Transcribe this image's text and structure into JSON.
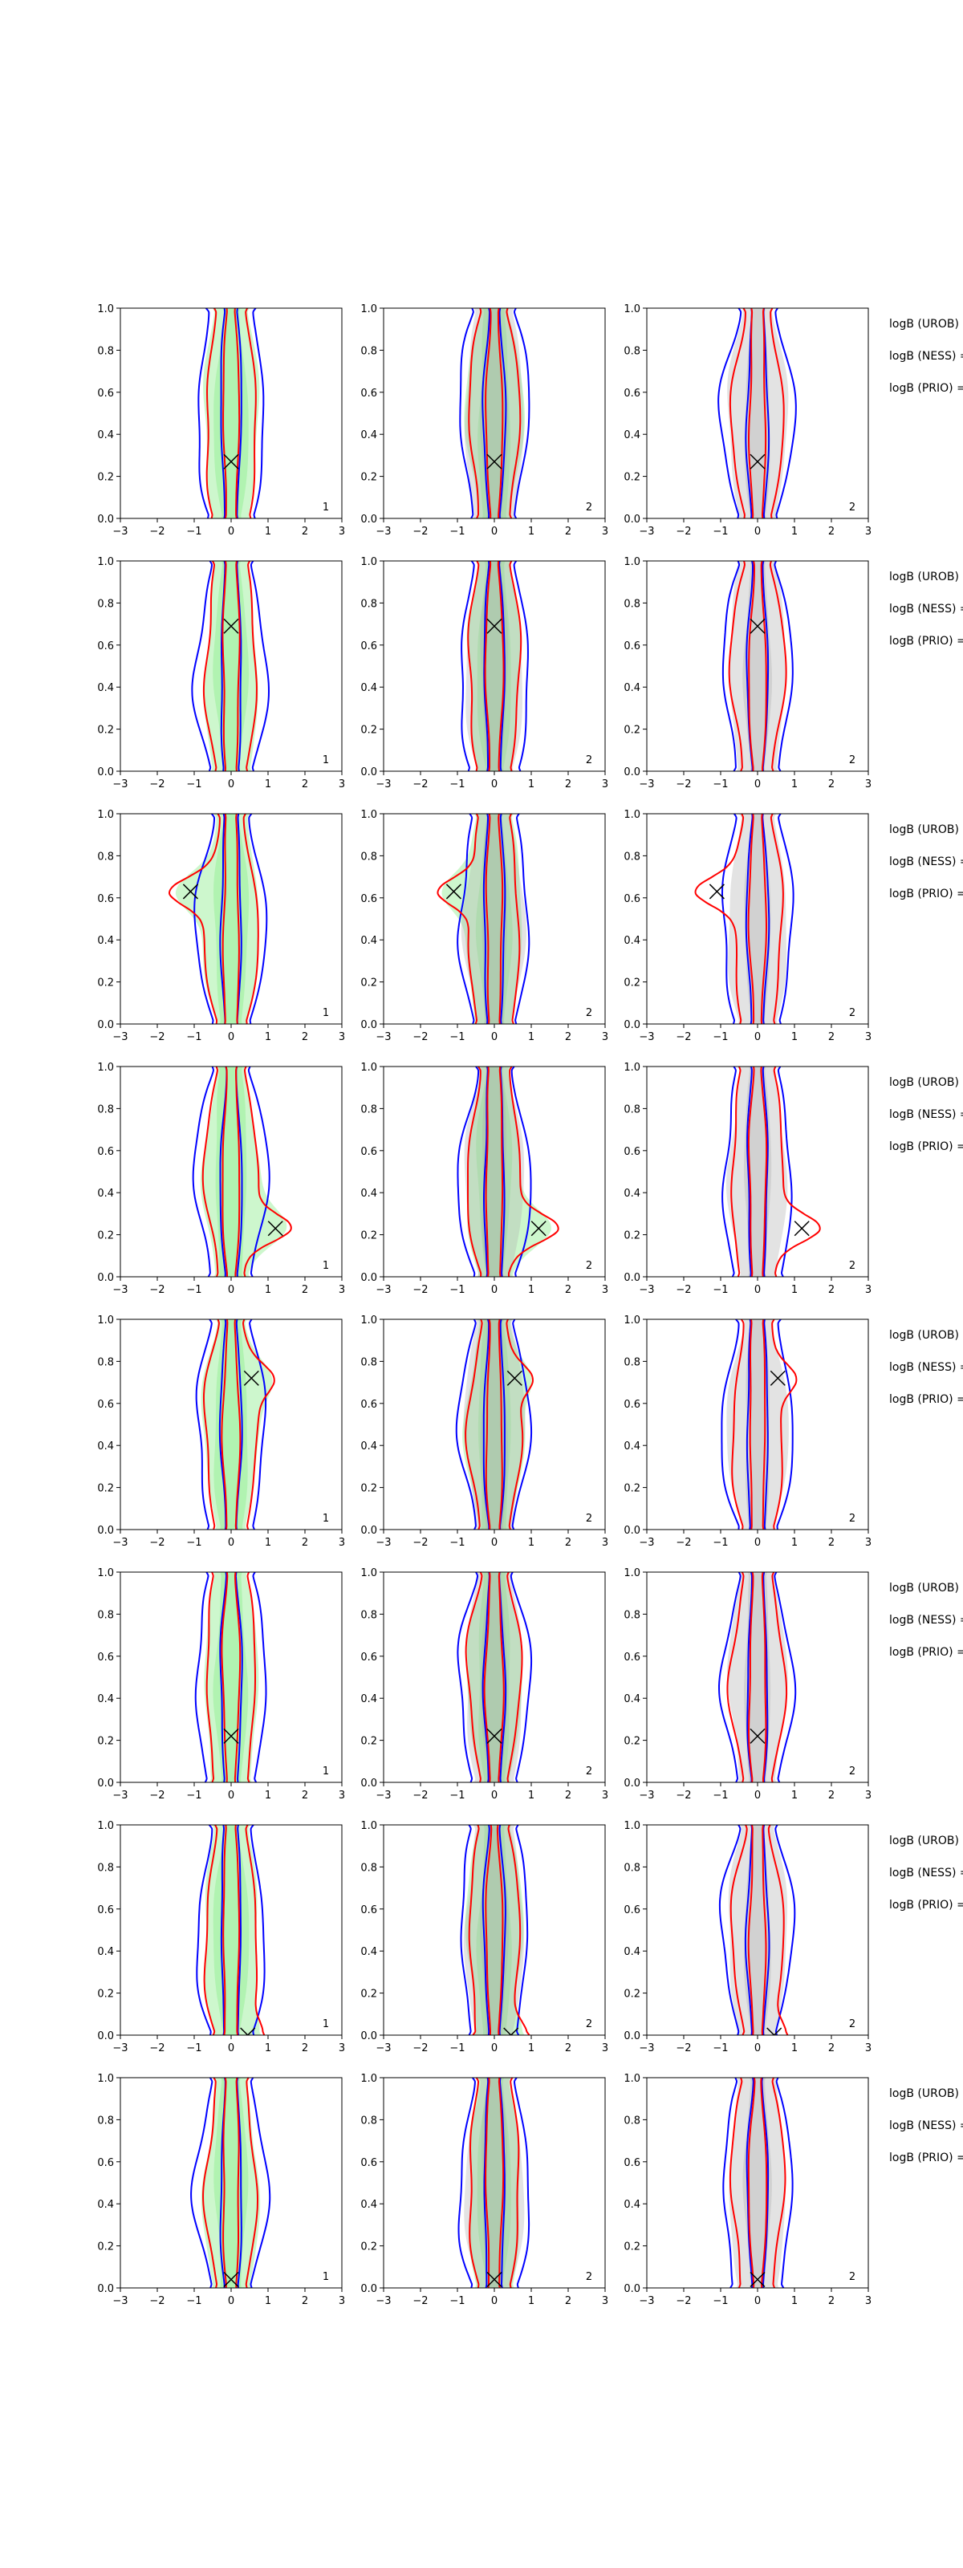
{
  "figure": {
    "annotations": {
      "logb_urob": "logB (UROB) =",
      "logb_ness": "logB (NESS) =",
      "logb_prio": "logB (PRIO) ="
    },
    "colors": {
      "red": "#ff0000",
      "blue": "#0000ff",
      "green_fill": "#90ee90",
      "grey_fill": "#b0b0b0",
      "marker": "#000000"
    }
  },
  "chart_data": [
    {
      "type": "contour",
      "row": 1,
      "panels": [
        {
          "col": 1,
          "panel_label": "1",
          "xlim": [
            -3,
            3
          ],
          "ylim": [
            0,
            1
          ],
          "xticks": [
            -3,
            -2,
            -1,
            0,
            1,
            2,
            3
          ],
          "yticks": [
            0,
            0.2,
            0.4,
            0.6,
            0.8,
            1
          ],
          "fill": "green",
          "marker": {
            "x": 0.0,
            "y": 0.27
          }
        },
        {
          "col": 2,
          "panel_label": "2",
          "xlim": [
            -3,
            3
          ],
          "ylim": [
            0,
            1
          ],
          "xticks": [
            -3,
            -2,
            -1,
            0,
            1,
            2,
            3
          ],
          "yticks": [
            0,
            0.2,
            0.4,
            0.6,
            0.8,
            1
          ],
          "fill": "green+grey",
          "marker": {
            "x": 0.0,
            "y": 0.27
          }
        },
        {
          "col": 3,
          "panel_label": "2",
          "xlim": [
            -3,
            3
          ],
          "ylim": [
            0,
            1
          ],
          "xticks": [
            -3,
            -2,
            -1,
            0,
            1,
            2,
            3
          ],
          "yticks": [
            0,
            0.2,
            0.4,
            0.6,
            0.8,
            1
          ],
          "fill": "grey",
          "marker": {
            "x": 0.0,
            "y": 0.27
          }
        }
      ]
    },
    {
      "type": "contour",
      "row": 2,
      "panels": [
        {
          "col": 1,
          "panel_label": "1",
          "xlim": [
            -3,
            3
          ],
          "ylim": [
            0,
            1
          ],
          "xticks": [
            -3,
            -2,
            -1,
            0,
            1,
            2,
            3
          ],
          "yticks": [
            0,
            0.2,
            0.4,
            0.6,
            0.8,
            1
          ],
          "fill": "green",
          "marker": {
            "x": 0.0,
            "y": 0.69
          }
        },
        {
          "col": 2,
          "panel_label": "2",
          "xlim": [
            -3,
            3
          ],
          "ylim": [
            0,
            1
          ],
          "xticks": [
            -3,
            -2,
            -1,
            0,
            1,
            2,
            3
          ],
          "yticks": [
            0,
            0.2,
            0.4,
            0.6,
            0.8,
            1
          ],
          "fill": "green+grey",
          "marker": {
            "x": 0.0,
            "y": 0.69
          }
        },
        {
          "col": 3,
          "panel_label": "2",
          "xlim": [
            -3,
            3
          ],
          "ylim": [
            0,
            1
          ],
          "xticks": [
            -3,
            -2,
            -1,
            0,
            1,
            2,
            3
          ],
          "yticks": [
            0,
            0.2,
            0.4,
            0.6,
            0.8,
            1
          ],
          "fill": "grey",
          "marker": {
            "x": 0.0,
            "y": 0.69
          }
        }
      ]
    },
    {
      "type": "contour",
      "row": 3,
      "panels": [
        {
          "col": 1,
          "panel_label": "1",
          "xlim": [
            -3,
            3
          ],
          "ylim": [
            0,
            1
          ],
          "xticks": [
            -3,
            -2,
            -1,
            0,
            1,
            2,
            3
          ],
          "yticks": [
            0,
            0.2,
            0.4,
            0.6,
            0.8,
            1
          ],
          "fill": "green",
          "marker": {
            "x": -1.1,
            "y": 0.63
          }
        },
        {
          "col": 2,
          "panel_label": "2",
          "xlim": [
            -3,
            3
          ],
          "ylim": [
            0,
            1
          ],
          "xticks": [
            -3,
            -2,
            -1,
            0,
            1,
            2,
            3
          ],
          "yticks": [
            0,
            0.2,
            0.4,
            0.6,
            0.8,
            1
          ],
          "fill": "green+grey",
          "marker": {
            "x": -1.1,
            "y": 0.63
          }
        },
        {
          "col": 3,
          "panel_label": "2",
          "xlim": [
            -3,
            3
          ],
          "ylim": [
            0,
            1
          ],
          "xticks": [
            -3,
            -2,
            -1,
            0,
            1,
            2,
            3
          ],
          "yticks": [
            0,
            0.2,
            0.4,
            0.6,
            0.8,
            1
          ],
          "fill": "grey",
          "marker": {
            "x": -1.1,
            "y": 0.63
          }
        }
      ]
    },
    {
      "type": "contour",
      "row": 4,
      "panels": [
        {
          "col": 1,
          "panel_label": "1",
          "xlim": [
            -3,
            3
          ],
          "ylim": [
            0,
            1
          ],
          "xticks": [
            -3,
            -2,
            -1,
            0,
            1,
            2,
            3
          ],
          "yticks": [
            0,
            0.2,
            0.4,
            0.6,
            0.8,
            1
          ],
          "fill": "green",
          "marker": {
            "x": 1.2,
            "y": 0.23
          }
        },
        {
          "col": 2,
          "panel_label": "2",
          "xlim": [
            -3,
            3
          ],
          "ylim": [
            0,
            1
          ],
          "xticks": [
            -3,
            -2,
            -1,
            0,
            1,
            2,
            3
          ],
          "yticks": [
            0,
            0.2,
            0.4,
            0.6,
            0.8,
            1
          ],
          "fill": "green+grey",
          "marker": {
            "x": 1.2,
            "y": 0.23
          }
        },
        {
          "col": 3,
          "panel_label": "2",
          "xlim": [
            -3,
            3
          ],
          "ylim": [
            0,
            1
          ],
          "xticks": [
            -3,
            -2,
            -1,
            0,
            1,
            2,
            3
          ],
          "yticks": [
            0,
            0.2,
            0.4,
            0.6,
            0.8,
            1
          ],
          "fill": "grey",
          "marker": {
            "x": 1.2,
            "y": 0.23
          }
        }
      ]
    },
    {
      "type": "contour",
      "row": 5,
      "panels": [
        {
          "col": 1,
          "panel_label": "1",
          "xlim": [
            -3,
            3
          ],
          "ylim": [
            0,
            1
          ],
          "xticks": [
            -3,
            -2,
            -1,
            0,
            1,
            2,
            3
          ],
          "yticks": [
            0,
            0.2,
            0.4,
            0.6,
            0.8,
            1
          ],
          "fill": "green",
          "marker": {
            "x": 0.55,
            "y": 0.72
          }
        },
        {
          "col": 2,
          "panel_label": "2",
          "xlim": [
            -3,
            3
          ],
          "ylim": [
            0,
            1
          ],
          "xticks": [
            -3,
            -2,
            -1,
            0,
            1,
            2,
            3
          ],
          "yticks": [
            0,
            0.2,
            0.4,
            0.6,
            0.8,
            1
          ],
          "fill": "green+grey",
          "marker": {
            "x": 0.55,
            "y": 0.72
          }
        },
        {
          "col": 3,
          "panel_label": "2",
          "xlim": [
            -3,
            3
          ],
          "ylim": [
            0,
            1
          ],
          "xticks": [
            -3,
            -2,
            -1,
            0,
            1,
            2,
            3
          ],
          "yticks": [
            0,
            0.2,
            0.4,
            0.6,
            0.8,
            1
          ],
          "fill": "grey",
          "marker": {
            "x": 0.55,
            "y": 0.72
          }
        }
      ]
    },
    {
      "type": "contour",
      "row": 6,
      "panels": [
        {
          "col": 1,
          "panel_label": "1",
          "xlim": [
            -3,
            3
          ],
          "ylim": [
            0,
            1
          ],
          "xticks": [
            -3,
            -2,
            -1,
            0,
            1,
            2,
            3
          ],
          "yticks": [
            0,
            0.2,
            0.4,
            0.6,
            0.8,
            1
          ],
          "fill": "green",
          "marker": {
            "x": 0.0,
            "y": 0.22
          }
        },
        {
          "col": 2,
          "panel_label": "2",
          "xlim": [
            -3,
            3
          ],
          "ylim": [
            0,
            1
          ],
          "xticks": [
            -3,
            -2,
            -1,
            0,
            1,
            2,
            3
          ],
          "yticks": [
            0,
            0.2,
            0.4,
            0.6,
            0.8,
            1
          ],
          "fill": "green+grey",
          "marker": {
            "x": 0.0,
            "y": 0.22
          }
        },
        {
          "col": 3,
          "panel_label": "2",
          "xlim": [
            -3,
            3
          ],
          "ylim": [
            0,
            1
          ],
          "xticks": [
            -3,
            -2,
            -1,
            0,
            1,
            2,
            3
          ],
          "yticks": [
            0,
            0.2,
            0.4,
            0.6,
            0.8,
            1
          ],
          "fill": "grey",
          "marker": {
            "x": 0.0,
            "y": 0.22
          }
        }
      ]
    },
    {
      "type": "contour",
      "row": 7,
      "panels": [
        {
          "col": 1,
          "panel_label": "1",
          "xlim": [
            -3,
            3
          ],
          "ylim": [
            0,
            1
          ],
          "xticks": [
            -3,
            -2,
            -1,
            0,
            1,
            2,
            3
          ],
          "yticks": [
            0,
            0.2,
            0.4,
            0.6,
            0.8,
            1
          ],
          "fill": "green",
          "marker": {
            "x": 0.45,
            "y": 0.0
          }
        },
        {
          "col": 2,
          "panel_label": "2",
          "xlim": [
            -3,
            3
          ],
          "ylim": [
            0,
            1
          ],
          "xticks": [
            -3,
            -2,
            -1,
            0,
            1,
            2,
            3
          ],
          "yticks": [
            0,
            0.2,
            0.4,
            0.6,
            0.8,
            1
          ],
          "fill": "green+grey",
          "marker": {
            "x": 0.45,
            "y": 0.0
          }
        },
        {
          "col": 3,
          "panel_label": "2",
          "xlim": [
            -3,
            3
          ],
          "ylim": [
            0,
            1
          ],
          "xticks": [
            -3,
            -2,
            -1,
            0,
            1,
            2,
            3
          ],
          "yticks": [
            0,
            0.2,
            0.4,
            0.6,
            0.8,
            1
          ],
          "fill": "grey",
          "marker": {
            "x": 0.45,
            "y": 0.0
          }
        }
      ]
    },
    {
      "type": "contour",
      "row": 8,
      "panels": [
        {
          "col": 1,
          "panel_label": "1",
          "xlim": [
            -3,
            3
          ],
          "ylim": [
            0,
            1
          ],
          "xticks": [
            -3,
            -2,
            -1,
            0,
            1,
            2,
            3
          ],
          "yticks": [
            0,
            0.2,
            0.4,
            0.6,
            0.8,
            1
          ],
          "fill": "green",
          "marker": {
            "x": 0.0,
            "y": 0.04
          }
        },
        {
          "col": 2,
          "panel_label": "2",
          "xlim": [
            -3,
            3
          ],
          "ylim": [
            0,
            1
          ],
          "xticks": [
            -3,
            -2,
            -1,
            0,
            1,
            2,
            3
          ],
          "yticks": [
            0,
            0.2,
            0.4,
            0.6,
            0.8,
            1
          ],
          "fill": "green+grey",
          "marker": {
            "x": 0.0,
            "y": 0.04
          }
        },
        {
          "col": 3,
          "panel_label": "2",
          "xlim": [
            -3,
            3
          ],
          "ylim": [
            0,
            1
          ],
          "xticks": [
            -3,
            -2,
            -1,
            0,
            1,
            2,
            3
          ],
          "yticks": [
            0,
            0.2,
            0.4,
            0.6,
            0.8,
            1
          ],
          "fill": "grey",
          "marker": {
            "x": 0.0,
            "y": 0.04
          }
        }
      ]
    }
  ]
}
